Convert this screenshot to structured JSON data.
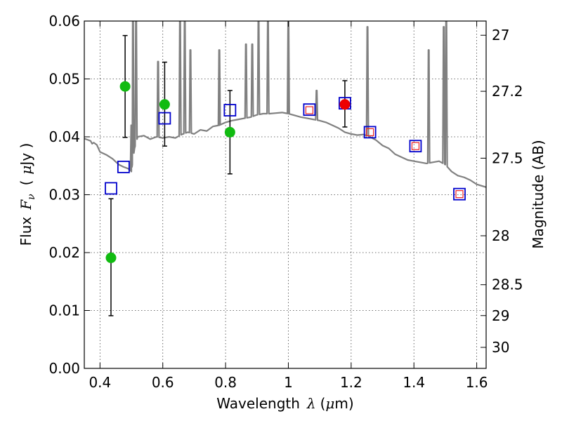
{
  "chart_data": {
    "type": "scatter",
    "xlabel": "Wavelength",
    "xlabel_symbol": "λ",
    "xlabel_unit_open": "(",
    "xlabel_unit_mu": "μ",
    "xlabel_unit_rest": "m)",
    "ylabel_prefix": "Flux",
    "ylabel_symbol": "F",
    "ylabel_subscript": "ν",
    "ylabel_unit_open": "(",
    "ylabel_unit_mu": "μ",
    "ylabel_unit_rest": "Jy )",
    "y2label": "Magnitude (AB)",
    "xlim": [
      0.35,
      1.63
    ],
    "ylim": [
      0.0,
      0.06
    ],
    "grid": true,
    "x_ticks": [
      0.4,
      0.6,
      0.8,
      1.0,
      1.2,
      1.4,
      1.6
    ],
    "x_tick_labels": [
      "0.4",
      "0.6",
      "0.8",
      "1",
      "1.2",
      "1.4",
      "1.6"
    ],
    "y_ticks": [
      0.0,
      0.01,
      0.02,
      0.03,
      0.04,
      0.05,
      0.06
    ],
    "y_tick_labels": [
      "0.00",
      "0.01",
      "0.02",
      "0.03",
      "0.04",
      "0.05",
      "0.06"
    ],
    "mag_ticks": [
      27,
      27.2,
      27.5,
      28,
      28.5,
      29,
      30
    ],
    "mag_tick_labels": [
      "27",
      "27.2",
      "27.5",
      "28",
      "28.5",
      "29",
      "30"
    ],
    "colors": {
      "sed": "#808080",
      "green": "#11bb11",
      "red": "#ee0000",
      "blue_square": "#0000cc",
      "red_square": "#ee2222",
      "errorbar": "#000000",
      "grid": "#444444"
    },
    "series": [
      {
        "name": "Observed fluxes (green)",
        "points": [
          {
            "x": 0.435,
            "y": 0.0191,
            "yerr_lo": 0.01,
            "yerr_hi": 0.0102
          },
          {
            "x": 0.48,
            "y": 0.0487,
            "yerr_lo": 0.0088,
            "yerr_hi": 0.0088
          },
          {
            "x": 0.606,
            "y": 0.0456,
            "yerr_lo": 0.0072,
            "yerr_hi": 0.0073
          },
          {
            "x": 0.814,
            "y": 0.0408,
            "yerr_lo": 0.0072,
            "yerr_hi": 0.0072
          }
        ]
      },
      {
        "name": "Observed flux (red)",
        "points": [
          {
            "x": 1.18,
            "y": 0.0456,
            "yerr_lo": 0.0039,
            "yerr_hi": 0.0041
          }
        ]
      },
      {
        "name": "Model photometry (blue squares)",
        "points": [
          {
            "x": 0.435,
            "y": 0.0311
          },
          {
            "x": 0.475,
            "y": 0.0348
          },
          {
            "x": 0.606,
            "y": 0.0432
          },
          {
            "x": 0.814,
            "y": 0.0446
          },
          {
            "x": 1.067,
            "y": 0.0447
          },
          {
            "x": 1.18,
            "y": 0.0458
          },
          {
            "x": 1.26,
            "y": 0.0408
          },
          {
            "x": 1.405,
            "y": 0.0384
          },
          {
            "x": 1.545,
            "y": 0.0301
          }
        ]
      },
      {
        "name": "Model photometry (red squares)",
        "points": [
          {
            "x": 1.067,
            "y": 0.0446
          },
          {
            "x": 1.26,
            "y": 0.0408
          },
          {
            "x": 1.405,
            "y": 0.0384
          },
          {
            "x": 1.545,
            "y": 0.0301
          }
        ]
      }
    ],
    "sed_continuum": [
      [
        0.35,
        0.0397
      ],
      [
        0.36,
        0.0395
      ],
      [
        0.37,
        0.0393
      ],
      [
        0.375,
        0.0388
      ],
      [
        0.38,
        0.039
      ],
      [
        0.39,
        0.0386
      ],
      [
        0.4,
        0.0374
      ],
      [
        0.42,
        0.0369
      ],
      [
        0.44,
        0.0362
      ],
      [
        0.46,
        0.0352
      ],
      [
        0.475,
        0.0348
      ],
      [
        0.49,
        0.0345
      ],
      [
        0.5,
        0.034
      ],
      [
        0.51,
        0.038
      ],
      [
        0.52,
        0.04
      ],
      [
        0.54,
        0.0402
      ],
      [
        0.56,
        0.0396
      ],
      [
        0.58,
        0.04
      ],
      [
        0.6,
        0.0398
      ],
      [
        0.62,
        0.04
      ],
      [
        0.64,
        0.0398
      ],
      [
        0.66,
        0.0404
      ],
      [
        0.68,
        0.0408
      ],
      [
        0.7,
        0.0405
      ],
      [
        0.72,
        0.0412
      ],
      [
        0.74,
        0.041
      ],
      [
        0.76,
        0.0418
      ],
      [
        0.78,
        0.042
      ],
      [
        0.8,
        0.0425
      ],
      [
        0.82,
        0.0428
      ],
      [
        0.84,
        0.043
      ],
      [
        0.86,
        0.0432
      ],
      [
        0.88,
        0.0434
      ],
      [
        0.9,
        0.0438
      ],
      [
        0.92,
        0.044
      ],
      [
        0.94,
        0.044
      ],
      [
        0.96,
        0.0441
      ],
      [
        0.98,
        0.0442
      ],
      [
        1.0,
        0.044
      ],
      [
        1.02,
        0.0437
      ],
      [
        1.04,
        0.0434
      ],
      [
        1.06,
        0.0432
      ],
      [
        1.08,
        0.043
      ],
      [
        1.1,
        0.0428
      ],
      [
        1.12,
        0.0425
      ],
      [
        1.14,
        0.042
      ],
      [
        1.16,
        0.0415
      ],
      [
        1.18,
        0.0408
      ],
      [
        1.2,
        0.0405
      ],
      [
        1.22,
        0.0403
      ],
      [
        1.24,
        0.0404
      ],
      [
        1.26,
        0.04
      ],
      [
        1.28,
        0.0394
      ],
      [
        1.3,
        0.0385
      ],
      [
        1.32,
        0.038
      ],
      [
        1.34,
        0.037
      ],
      [
        1.36,
        0.0365
      ],
      [
        1.38,
        0.036
      ],
      [
        1.4,
        0.0358
      ],
      [
        1.42,
        0.0356
      ],
      [
        1.44,
        0.0354
      ],
      [
        1.46,
        0.0356
      ],
      [
        1.48,
        0.0358
      ],
      [
        1.5,
        0.0352
      ],
      [
        1.52,
        0.034
      ],
      [
        1.54,
        0.0333
      ],
      [
        1.56,
        0.033
      ],
      [
        1.58,
        0.0325
      ],
      [
        1.6,
        0.0318
      ],
      [
        1.63,
        0.0313
      ]
    ],
    "sed_lines": [
      {
        "x": 0.5,
        "peak": 0.042
      },
      {
        "x": 0.505,
        "peak": 0.06
      },
      {
        "x": 0.515,
        "peak": 0.06
      },
      {
        "x": 0.585,
        "peak": 0.053
      },
      {
        "x": 0.655,
        "peak": 0.06
      },
      {
        "x": 0.67,
        "peak": 0.06
      },
      {
        "x": 0.688,
        "peak": 0.055
      },
      {
        "x": 0.78,
        "peak": 0.055
      },
      {
        "x": 0.865,
        "peak": 0.056
      },
      {
        "x": 0.885,
        "peak": 0.056
      },
      {
        "x": 0.905,
        "peak": 0.06
      },
      {
        "x": 0.935,
        "peak": 0.06
      },
      {
        "x": 1.0,
        "peak": 0.06
      },
      {
        "x": 1.09,
        "peak": 0.048
      },
      {
        "x": 1.252,
        "peak": 0.059
      },
      {
        "x": 1.447,
        "peak": 0.055
      },
      {
        "x": 1.495,
        "peak": 0.059
      },
      {
        "x": 1.503,
        "peak": 0.06
      }
    ]
  }
}
